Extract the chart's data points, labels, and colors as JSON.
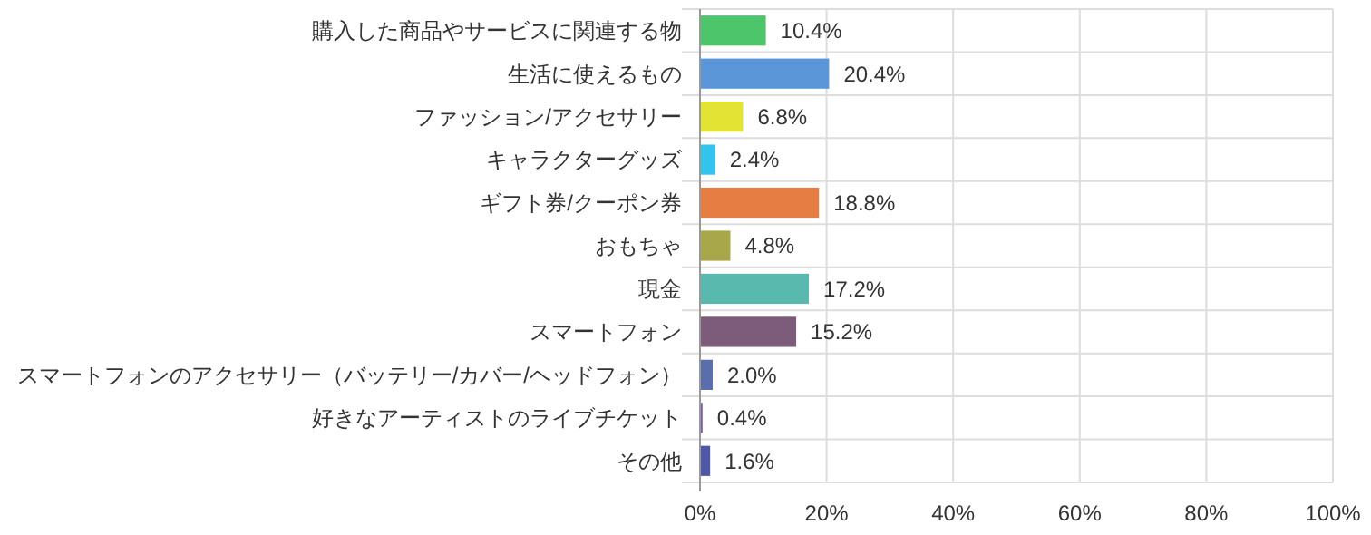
{
  "chart_data": {
    "type": "bar",
    "orientation": "horizontal",
    "categories": [
      "購入した商品やサービスに関連する物",
      "生活に使えるもの",
      "ファッション/アクセサリー",
      "キャラクターグッズ",
      "ギフト券/クーポン券",
      "おもちゃ",
      "現金",
      "スマートフォン",
      "スマートフォンのアクセサリー（バッテリー/カバー/ヘッドフォン）",
      "好きなアーティストのライブチケット",
      "その他"
    ],
    "values": [
      10.4,
      20.4,
      6.8,
      2.4,
      18.8,
      4.8,
      17.2,
      15.2,
      2.0,
      0.4,
      1.6
    ],
    "colors": [
      "#4dc66b",
      "#5b96d9",
      "#e3e334",
      "#33c4ee",
      "#e67e43",
      "#a8a84b",
      "#59b9ae",
      "#7d5c7b",
      "#5a6eac",
      "#7a5cb0",
      "#4f58a8"
    ],
    "value_labels": [
      "10.4%",
      "20.4%",
      "6.8%",
      "2.4%",
      "18.8%",
      "4.8%",
      "17.2%",
      "15.2%",
      "2.0%",
      "0.4%",
      "1.6%"
    ],
    "xlim": [
      0,
      100
    ],
    "xticks": [
      {
        "value": 0,
        "label": "0%"
      },
      {
        "value": 20,
        "label": "20%"
      },
      {
        "value": 40,
        "label": "40%"
      },
      {
        "value": 60,
        "label": "60%"
      },
      {
        "value": 80,
        "label": "80%"
      },
      {
        "value": 100,
        "label": "100%"
      }
    ],
    "grid": true
  }
}
